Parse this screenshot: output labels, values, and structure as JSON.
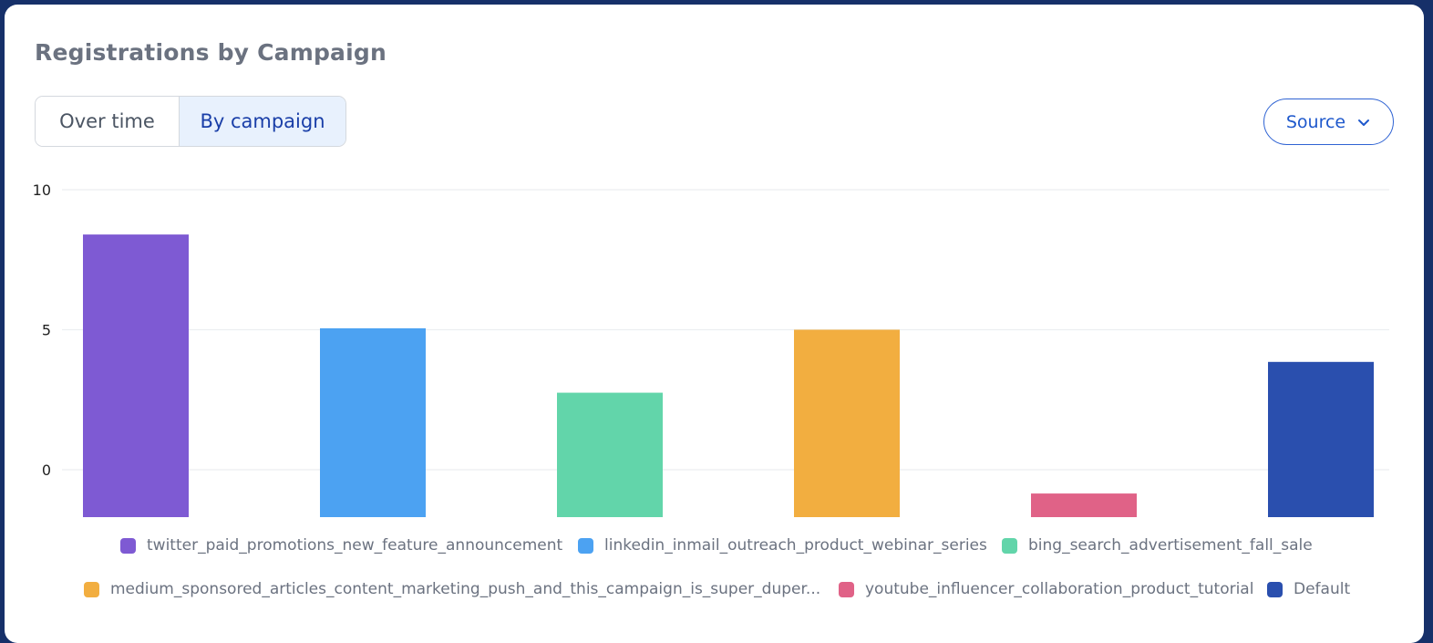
{
  "title": "Registrations by Campaign",
  "view_toggle": {
    "options": [
      "Over time",
      "By campaign"
    ],
    "selected": "By campaign"
  },
  "source_dropdown": {
    "label": "Source"
  },
  "colors": {
    "twitter": "#7e5ad3",
    "linkedin": "#4ca2f2",
    "bing": "#62d5aa",
    "medium": "#f2ae40",
    "youtube": "#e06287",
    "default": "#2a4fae"
  },
  "chart_data": {
    "type": "bar",
    "title": "Registrations by Campaign",
    "xlabel": "",
    "ylabel": "",
    "ylim": [
      -1.7,
      10
    ],
    "yticks": [
      0,
      5,
      10
    ],
    "grid": true,
    "legend_position": "bottom",
    "series": [
      {
        "name": "twitter_paid_promotions_new_feature_announcement",
        "value": 8.4,
        "color": "#7e5ad3"
      },
      {
        "name": "linkedin_inmail_outreach_product_webinar_series",
        "value": 5.05,
        "color": "#4ca2f2"
      },
      {
        "name": "bing_search_advertisement_fall_sale",
        "value": 2.75,
        "color": "#62d5aa"
      },
      {
        "name": "medium_sponsored_articles_content_marketing_push_and_this_campaign_is_super_duper...",
        "value": 5.0,
        "color": "#f2ae40"
      },
      {
        "name": "youtube_influencer_collaboration_product_tutorial",
        "value": -0.85,
        "color": "#e06287"
      },
      {
        "name": "Default",
        "value": 3.85,
        "color": "#2a4fae"
      }
    ]
  }
}
